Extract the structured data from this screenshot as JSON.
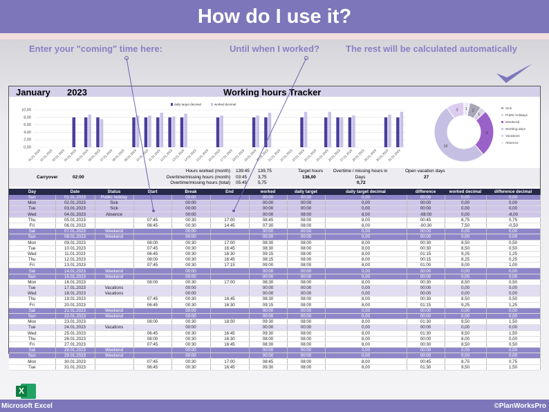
{
  "header": {
    "title": "How do I use it?"
  },
  "callouts": [
    "Enter your \"coming\" time here:",
    "Until when I worked?",
    "The rest will be calculated automatically"
  ],
  "sheet": {
    "month": "January",
    "year": "2023",
    "title": "Working hours Tracker"
  },
  "chart_data": [
    {
      "type": "bar",
      "categories": [
        "01.01.2023",
        "02.01.2023",
        "03.01.2023",
        "04.01.2023",
        "05.01.2023",
        "06.01.2023",
        "07.01.2023",
        "08.01.2023",
        "09.01.2023",
        "10.01.2023",
        "11.01.2023",
        "12.01.2023",
        "13.01.2023",
        "14.01.2023",
        "15.01.2023",
        "16.01.2023",
        "17.01.2023",
        "18.01.2023",
        "19.01.2023",
        "20.01.2023",
        "21.01.2023",
        "22.01.2023",
        "23.01.2023",
        "24.01.2023",
        "25.01.2023",
        "26.01.2023",
        "27.01.2023",
        "28.01.2023",
        "29.01.2023",
        "30.01.2023",
        "31.01.2023"
      ],
      "series": [
        {
          "name": "daily target decimal",
          "color": "#4a3f9c",
          "values": [
            0,
            0,
            0,
            8,
            8,
            8,
            0,
            0,
            8,
            8,
            8,
            8,
            8,
            0,
            0,
            8,
            0,
            0,
            8,
            8,
            0,
            0,
            8,
            0,
            8,
            8,
            8,
            0,
            0,
            8,
            8
          ]
        },
        {
          "name": "worked decimal",
          "color": "#c8c2e8",
          "values": [
            0,
            0,
            0,
            0,
            8.75,
            7.5,
            0,
            0,
            8.5,
            8.5,
            9.25,
            8.25,
            9,
            0,
            0,
            8.5,
            0,
            0,
            8.5,
            9.25,
            0,
            0,
            9.5,
            0,
            9.5,
            8,
            8.5,
            0,
            0,
            8.75,
            9.5
          ]
        }
      ],
      "ylim": [
        0,
        10
      ],
      "yticks": [
        {
          "value": 0,
          "label": "0,00"
        },
        {
          "value": 2,
          "label": "2,00"
        },
        {
          "value": 4,
          "label": "4,00"
        },
        {
          "value": 6,
          "label": "6,00"
        },
        {
          "value": 8,
          "label": "8,00"
        },
        {
          "value": 10,
          "label": "10,00"
        }
      ],
      "grid": true
    },
    {
      "type": "pie",
      "categories": [
        "Sick",
        "Public holidays",
        "Weekend",
        "Working days",
        "Vacations",
        "Absence"
      ],
      "values": [
        2,
        1,
        8,
        16,
        3,
        1
      ],
      "colors": [
        "#a9a5b8",
        "#d6d2e6",
        "#9a62c9",
        "#c5c0e3",
        "#dccdf0",
        "#eeeaf7"
      ]
    }
  ],
  "summary": {
    "carryover": {
      "label": "Carryover",
      "value": "02:00"
    },
    "hours": [
      {
        "label": "Hours worked (month)",
        "time": "139:45",
        "decimal": "139,75"
      },
      {
        "label": "Overtime/missing hours (month)",
        "time": "03:45",
        "decimal": "3,75"
      },
      {
        "label": "Overtime/missing hours (total)",
        "time": "05:45",
        "decimal": "5,75"
      }
    ],
    "target": {
      "label": "Target hours",
      "value": "136,00"
    },
    "days": {
      "label": "Overtime / missing hours in Days",
      "value": "0,72"
    },
    "vacation": {
      "label": "Open vacation days",
      "value": "27"
    }
  },
  "table": {
    "headers": [
      "Day",
      "Date",
      "Status",
      "Start",
      "Break",
      "End",
      "worked",
      "daily target",
      "daily target decimal",
      "difference",
      "worked decimal",
      "difference decimal"
    ],
    "rows": [
      {
        "color": "#8e86c8",
        "cells": [
          "Sun",
          "01.01.2023",
          "Public holiday",
          null,
          "00:00",
          null,
          "00:00",
          "00:00",
          "0,00",
          "00:00",
          "0,00",
          "0,00"
        ]
      },
      {
        "color": "#cfc6ea",
        "cells": [
          "Mon",
          "02.01.2023",
          "Sick",
          null,
          "00:00",
          null,
          "00:00",
          "00:00",
          "0,00",
          "00:00",
          "0,00",
          "0,00"
        ]
      },
      {
        "color": "#cfc6ea",
        "cells": [
          "Tue",
          "03.01.2023",
          "Sick",
          null,
          "00:00",
          null,
          "00:00",
          "00:00",
          "0,00",
          "00:00",
          "0,00",
          "0,00"
        ]
      },
      {
        "color": "#cfc6ea",
        "cells": [
          "Wed",
          "04.01.2023",
          "Absence",
          null,
          "00:00",
          null,
          "00:00",
          "08:00",
          "8,00",
          "-08:00",
          "0,00",
          "-8,00"
        ]
      },
      {
        "color": "#ffffff",
        "cells": [
          "Thu",
          "05.01.2023",
          null,
          "07:45",
          "00:30",
          "17:00",
          "08:45",
          "08:00",
          "8,00",
          "00:45",
          "8,75",
          "0,75"
        ]
      },
      {
        "color": "#ffffff",
        "cells": [
          "Fri",
          "06.01.2023",
          null,
          "06:45",
          "00:30",
          "14:45",
          "07:30",
          "08:00",
          "8,00",
          "-00:30",
          "7,50",
          "-0,50"
        ]
      },
      {
        "color": "#8e86c8",
        "cells": [
          "Sat",
          "07.01.2023",
          "Weekend",
          null,
          "00:00",
          null,
          "00:00",
          "00:00",
          "0,00",
          "00:00",
          "0,00",
          "0,00"
        ]
      },
      {
        "color": "#8e86c8",
        "cells": [
          "Sun",
          "08.01.2023",
          "Weekend",
          null,
          "00:00",
          null,
          "00:00",
          "00:00",
          "0,00",
          "00:00",
          "0,00",
          "0,00"
        ]
      },
      {
        "color": "#ffffff",
        "cells": [
          "Mon",
          "09.01.2023",
          null,
          "08:00",
          "00:30",
          "17:00",
          "08:30",
          "08:00",
          "8,00",
          "00:30",
          "8,50",
          "0,50"
        ]
      },
      {
        "color": "#ffffff",
        "cells": [
          "Tue",
          "10.01.2023",
          null,
          "07:45",
          "00:30",
          "16:45",
          "08:30",
          "08:00",
          "8,00",
          "00:30",
          "8,50",
          "0,50"
        ]
      },
      {
        "color": "#ffffff",
        "cells": [
          "Wed",
          "11.01.2023",
          null,
          "06:45",
          "00:30",
          "16:30",
          "09:15",
          "08:00",
          "8,00",
          "01:15",
          "9,25",
          "1,25"
        ]
      },
      {
        "color": "#ffffff",
        "cells": [
          "Thu",
          "12.01.2023",
          null,
          "08:00",
          "00:30",
          "16:45",
          "08:15",
          "08:00",
          "8,00",
          "00:15",
          "8,25",
          "0,25"
        ]
      },
      {
        "color": "#ffffff",
        "cells": [
          "Fri",
          "13.01.2023",
          null,
          "07:45",
          "00:30",
          "17:15",
          "09:00",
          "08:00",
          "8,00",
          "01:00",
          "9,00",
          "1,00"
        ]
      },
      {
        "color": "#8e86c8",
        "cells": [
          "Sat",
          "14.01.2023",
          "Weekend",
          null,
          "00:00",
          null,
          "00:00",
          "00:00",
          "0,00",
          "00:00",
          "0,00",
          "0,00"
        ]
      },
      {
        "color": "#8e86c8",
        "cells": [
          "Sun",
          "15.01.2023",
          "Weekend",
          null,
          "00:00",
          null,
          "00:00",
          "00:00",
          "0,00",
          "00:00",
          "0,00",
          "0,00"
        ]
      },
      {
        "color": "#ffffff",
        "cells": [
          "Mon",
          "16.01.2023",
          null,
          "08:00",
          "00:30",
          "17:00",
          "08:30",
          "08:00",
          "8,00",
          "00:30",
          "8,50",
          "0,50"
        ]
      },
      {
        "color": "#e2ddf3",
        "cells": [
          "Tue",
          "17.01.2023",
          "Vacations",
          null,
          "00:00",
          null,
          "00:00",
          "00:00",
          "0,00",
          "00:00",
          "0,00",
          "0,00"
        ]
      },
      {
        "color": "#e2ddf3",
        "cells": [
          "Wed",
          "18.01.2023",
          "Vacations",
          null,
          "00:00",
          null,
          "00:00",
          "00:00",
          "0,00",
          "00:00",
          "0,00",
          "0,00"
        ]
      },
      {
        "color": "#ffffff",
        "cells": [
          "Thu",
          "19.01.2023",
          null,
          "07:45",
          "00:30",
          "16:45",
          "08:30",
          "08:00",
          "8,00",
          "00:30",
          "8,50",
          "0,50"
        ]
      },
      {
        "color": "#ffffff",
        "cells": [
          "Fri",
          "20.01.2023",
          null,
          "06:45",
          "00:30",
          "16:30",
          "09:15",
          "08:00",
          "8,00",
          "01:15",
          "9,25",
          "1,25"
        ]
      },
      {
        "color": "#8e86c8",
        "cells": [
          "Sat",
          "21.01.2023",
          "Weekend",
          null,
          "00:00",
          null,
          "00:00",
          "00:00",
          "0,00",
          "00:00",
          "0,00",
          "0,00"
        ]
      },
      {
        "color": "#8e86c8",
        "cells": [
          "Sun",
          "22.01.2023",
          "Weekend",
          null,
          "00:00",
          null,
          "00:00",
          "00:00",
          "0,00",
          "00:00",
          "0,00",
          "0,00"
        ]
      },
      {
        "color": "#ffffff",
        "cells": [
          "Mon",
          "23.01.2023",
          null,
          "08:00",
          "00:30",
          "18:00",
          "09:30",
          "08:00",
          "8,00",
          "01:30",
          "9,50",
          "1,50"
        ]
      },
      {
        "color": "#e2ddf3",
        "cells": [
          "Tue",
          "24.01.2023",
          "Vacations",
          null,
          "00:00",
          null,
          "00:00",
          "00:00",
          "0,00",
          "00:00",
          "0,00",
          "0,00"
        ]
      },
      {
        "color": "#ffffff",
        "cells": [
          "Wed",
          "25.01.2023",
          null,
          "06:45",
          "00:30",
          "16:45",
          "09:30",
          "08:00",
          "8,00",
          "01:30",
          "9,50",
          "1,50"
        ]
      },
      {
        "color": "#ffffff",
        "cells": [
          "Thu",
          "26.01.2023",
          null,
          "08:00",
          "00:30",
          "16:30",
          "08:00",
          "08:00",
          "8,00",
          "00:00",
          "8,00",
          "0,00"
        ]
      },
      {
        "color": "#ffffff",
        "cells": [
          "Fri",
          "27.01.2023",
          null,
          "07:45",
          "00:30",
          "16:45",
          "08:30",
          "08:00",
          "8,00",
          "00:30",
          "8,50",
          "0,50"
        ]
      },
      {
        "color": "#8e86c8",
        "cells": [
          "Sat",
          "28.01.2023",
          "Weekend",
          null,
          "00:00",
          null,
          "00:00",
          "00:00",
          "0,00",
          "00:00",
          "0,00",
          "0,00"
        ]
      },
      {
        "color": "#8e86c8",
        "cells": [
          "Sun",
          "29.01.2023",
          "Weekend",
          null,
          "00:00",
          null,
          "00:00",
          "00:00",
          "0,00",
          "00:00",
          "0,00",
          "0,00"
        ]
      },
      {
        "color": "#ffffff",
        "cells": [
          "Mon",
          "30.01.2023",
          null,
          "07:45",
          "00:30",
          "17:00",
          "08:45",
          "08:00",
          "8,00",
          "00:45",
          "8,75",
          "0,75"
        ]
      },
      {
        "color": "#ffffff",
        "cells": [
          "Tue",
          "31.01.2023",
          null,
          "06:45",
          "00:30",
          "16:45",
          "09:30",
          "08:00",
          "8,00",
          "01:30",
          "9,50",
          "1,50"
        ]
      }
    ]
  },
  "footer": {
    "app": "Microsoft Excel",
    "brand": "©PlanWorksPro"
  }
}
